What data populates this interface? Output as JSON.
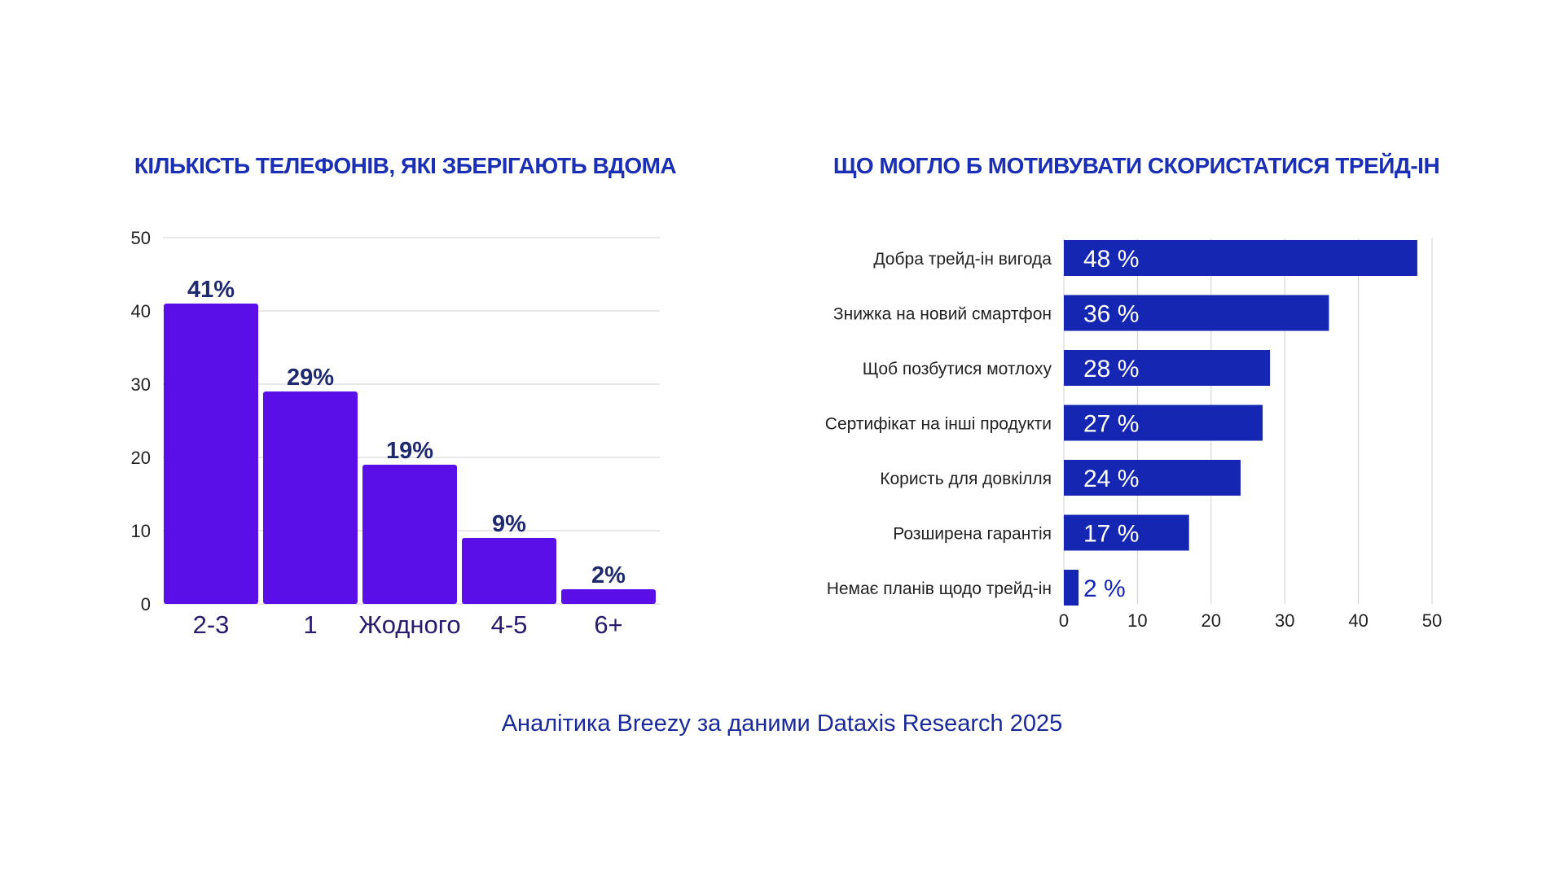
{
  "colors": {
    "title": "#1a2fb3",
    "left_bar": "#5a0fe8",
    "left_data_label": "#1f2a6e",
    "left_category_label": "#2a1a6e",
    "right_bar": "#1526b3",
    "right_value_label": "#ffffff",
    "axis_text": "#222222",
    "grid": "#d0d0d0",
    "source": "#1a2a99"
  },
  "chart_data": [
    {
      "type": "bar",
      "orientation": "vertical",
      "title": "КІЛЬКІСТЬ ТЕЛЕФОНІВ, ЯКІ ЗБЕРІГАЮТЬ ВДОМА",
      "categories": [
        "2-3",
        "1",
        "Жодного",
        "4-5",
        "6+"
      ],
      "values": [
        41,
        29,
        19,
        9,
        2
      ],
      "data_labels": [
        "41%",
        "29%",
        "19%",
        "9%",
        "2%"
      ],
      "ylim": [
        0,
        50
      ],
      "yticks": [
        "0",
        "10",
        "20",
        "30",
        "40",
        "50"
      ],
      "grid": true
    },
    {
      "type": "bar",
      "orientation": "horizontal",
      "title": "ЩО МОГЛО Б МОТИВУВАТИ СКОРИСТАТИСЯ ТРЕЙД-ІН",
      "categories": [
        "Добра трейд-ін вигода",
        "Знижка на новий смартфон",
        "Щоб позбутися мотлоху",
        "Сертифікат на інші продукти",
        "Користь для довкілля",
        "Розширена гарантія",
        "Немає планів щодо трейд-ін"
      ],
      "values": [
        48,
        36,
        28,
        27,
        24,
        17,
        2
      ],
      "data_labels": [
        "48 %",
        "36 %",
        "28 %",
        "27 %",
        "24 %",
        "17 %",
        "2 %"
      ],
      "xlim": [
        0,
        50
      ],
      "xticks": [
        "0",
        "10",
        "20",
        "30",
        "40",
        "50"
      ],
      "grid": true
    }
  ],
  "source": "Аналітика Breezy за даними Dataxis Research 2025"
}
